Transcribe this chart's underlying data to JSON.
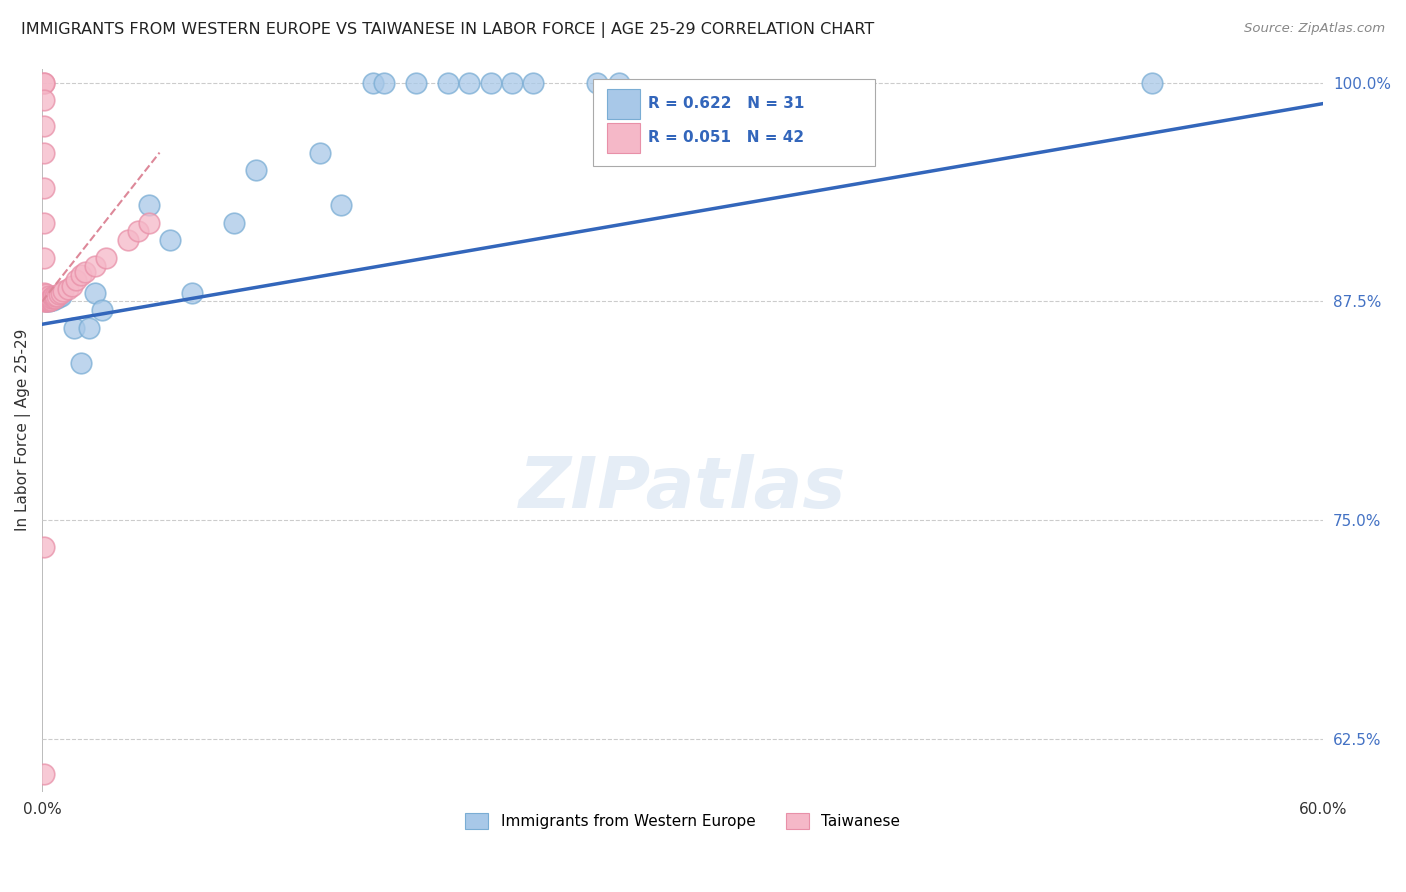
{
  "title": "IMMIGRANTS FROM WESTERN EUROPE VS TAIWANESE IN LABOR FORCE | AGE 25-29 CORRELATION CHART",
  "source": "Source: ZipAtlas.com",
  "ylabel": "In Labor Force | Age 25-29",
  "xlim": [
    0.0,
    0.6
  ],
  "ylim": [
    0.595,
    1.008
  ],
  "yticks_right": [
    0.625,
    0.75,
    0.875,
    1.0
  ],
  "ytick_labels_right": [
    "62.5%",
    "75.0%",
    "87.5%",
    "100.0%"
  ],
  "blue_R": 0.622,
  "blue_N": 31,
  "pink_R": 0.051,
  "pink_N": 42,
  "blue_color": "#a8c8e8",
  "blue_edge_color": "#7aadd4",
  "blue_line_color": "#3366bb",
  "pink_color": "#f5b8c8",
  "pink_edge_color": "#e890a8",
  "pink_line_color": "#dd8899",
  "blue_x": [
    0.002,
    0.003,
    0.004,
    0.005,
    0.006,
    0.007,
    0.008,
    0.009,
    0.015,
    0.018,
    0.022,
    0.025,
    0.028,
    0.05,
    0.06,
    0.07,
    0.09,
    0.1,
    0.13,
    0.14,
    0.155,
    0.16,
    0.175,
    0.19,
    0.2,
    0.21,
    0.22,
    0.23,
    0.26,
    0.27,
    0.52
  ],
  "blue_y": [
    0.875,
    0.875,
    0.876,
    0.876,
    0.877,
    0.877,
    0.878,
    0.878,
    0.86,
    0.84,
    0.86,
    0.88,
    0.87,
    0.93,
    0.91,
    0.88,
    0.92,
    0.95,
    0.96,
    0.93,
    1.0,
    1.0,
    1.0,
    1.0,
    1.0,
    1.0,
    1.0,
    1.0,
    1.0,
    1.0,
    1.0
  ],
  "pink_x": [
    0.001,
    0.001,
    0.001,
    0.001,
    0.001,
    0.001,
    0.001,
    0.001,
    0.001,
    0.001,
    0.002,
    0.002,
    0.002,
    0.002,
    0.002,
    0.002,
    0.003,
    0.003,
    0.003,
    0.003,
    0.004,
    0.004,
    0.005,
    0.005,
    0.006,
    0.006,
    0.007,
    0.008,
    0.009,
    0.01,
    0.012,
    0.014,
    0.016,
    0.018,
    0.02,
    0.025,
    0.03,
    0.04,
    0.045,
    0.05,
    0.001,
    0.001
  ],
  "pink_y": [
    1.0,
    1.0,
    0.99,
    0.975,
    0.96,
    0.94,
    0.92,
    0.9,
    0.88,
    0.875,
    0.875,
    0.875,
    0.876,
    0.877,
    0.878,
    0.879,
    0.875,
    0.876,
    0.877,
    0.878,
    0.876,
    0.877,
    0.877,
    0.878,
    0.877,
    0.878,
    0.878,
    0.879,
    0.88,
    0.881,
    0.882,
    0.884,
    0.887,
    0.89,
    0.892,
    0.895,
    0.9,
    0.91,
    0.915,
    0.92,
    0.735,
    0.605
  ],
  "blue_trend_x0": 0.0,
  "blue_trend_x1": 0.6,
  "blue_trend_y0": 0.862,
  "blue_trend_y1": 0.988,
  "pink_trend_x0": 0.0,
  "pink_trend_x1": 0.055,
  "pink_trend_y0": 0.875,
  "pink_trend_y1": 0.96,
  "watermark": "ZIPatlas",
  "background_color": "#ffffff",
  "grid_color": "#cccccc"
}
